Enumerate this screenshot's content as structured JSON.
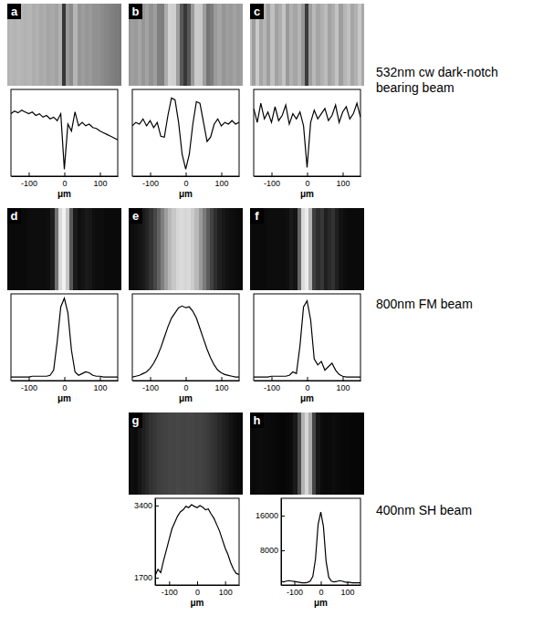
{
  "chart_data": [
    {
      "type": "line",
      "label": "a",
      "color": "#000000",
      "xlabel": "μm",
      "tick_labels": "x",
      "xlim": [
        -150,
        150
      ],
      "xticks": [
        -100,
        0,
        100
      ],
      "ylim": [
        0,
        1
      ],
      "x": [
        -150,
        -140,
        -130,
        -120,
        -110,
        -100,
        -90,
        -80,
        -70,
        -60,
        -50,
        -40,
        -30,
        -20,
        -10,
        0,
        10,
        20,
        30,
        40,
        50,
        60,
        70,
        80,
        90,
        100,
        110,
        120,
        130,
        140,
        150
      ],
      "values": [
        0.72,
        0.75,
        0.73,
        0.76,
        0.74,
        0.72,
        0.74,
        0.7,
        0.72,
        0.68,
        0.7,
        0.66,
        0.68,
        0.64,
        0.72,
        0.08,
        0.6,
        0.52,
        0.74,
        0.58,
        0.62,
        0.58,
        0.6,
        0.56,
        0.55,
        0.52,
        0.5,
        0.48,
        0.46,
        0.44,
        0.42
      ]
    },
    {
      "type": "line",
      "label": "b",
      "color": "#000000",
      "xlabel": "μm",
      "tick_labels": "x",
      "xlim": [
        -150,
        150
      ],
      "xticks": [
        -100,
        0,
        100
      ],
      "ylim": [
        0,
        1
      ],
      "x": [
        -150,
        -140,
        -130,
        -120,
        -110,
        -100,
        -90,
        -80,
        -70,
        -60,
        -50,
        -40,
        -30,
        -20,
        -10,
        0,
        10,
        20,
        30,
        40,
        50,
        60,
        70,
        80,
        90,
        100,
        110,
        120,
        130,
        140,
        150
      ],
      "values": [
        0.58,
        0.62,
        0.6,
        0.66,
        0.58,
        0.64,
        0.56,
        0.62,
        0.46,
        0.45,
        0.7,
        0.9,
        0.88,
        0.62,
        0.25,
        0.08,
        0.25,
        0.6,
        0.86,
        0.84,
        0.62,
        0.4,
        0.45,
        0.6,
        0.66,
        0.58,
        0.62,
        0.6,
        0.64,
        0.6,
        0.62
      ]
    },
    {
      "type": "line",
      "label": "c",
      "color": "#000000",
      "xlabel": "μm",
      "tick_labels": "x",
      "xlim": [
        -150,
        150
      ],
      "xticks": [
        -100,
        0,
        100
      ],
      "ylim": [
        0,
        1
      ],
      "x": [
        -150,
        -140,
        -130,
        -120,
        -110,
        -100,
        -90,
        -80,
        -70,
        -60,
        -50,
        -40,
        -30,
        -20,
        -10,
        0,
        10,
        20,
        30,
        40,
        50,
        60,
        70,
        80,
        90,
        100,
        110,
        120,
        130,
        140,
        150
      ],
      "values": [
        0.78,
        0.62,
        0.84,
        0.66,
        0.74,
        0.62,
        0.8,
        0.64,
        0.7,
        0.82,
        0.6,
        0.72,
        0.66,
        0.74,
        0.58,
        0.1,
        0.62,
        0.76,
        0.66,
        0.72,
        0.78,
        0.64,
        0.7,
        0.82,
        0.62,
        0.74,
        0.8,
        0.66,
        0.72,
        0.84,
        0.68
      ]
    },
    {
      "type": "line",
      "label": "d",
      "color": "#000000",
      "xlabel": "μm",
      "tick_labels": "x",
      "xlim": [
        -150,
        150
      ],
      "xticks": [
        -100,
        0,
        100
      ],
      "ylim": [
        0,
        1
      ],
      "x": [
        -150,
        -140,
        -130,
        -120,
        -110,
        -100,
        -90,
        -80,
        -70,
        -60,
        -50,
        -40,
        -30,
        -20,
        -10,
        0,
        10,
        20,
        30,
        40,
        50,
        60,
        70,
        80,
        90,
        100,
        110,
        120,
        130,
        140,
        150
      ],
      "values": [
        0.04,
        0.04,
        0.04,
        0.04,
        0.04,
        0.04,
        0.05,
        0.05,
        0.05,
        0.05,
        0.05,
        0.06,
        0.12,
        0.45,
        0.85,
        0.95,
        0.78,
        0.35,
        0.1,
        0.06,
        0.08,
        0.1,
        0.09,
        0.06,
        0.05,
        0.05,
        0.04,
        0.04,
        0.04,
        0.04,
        0.04
      ]
    },
    {
      "type": "line",
      "label": "e",
      "color": "#000000",
      "xlabel": "μm",
      "tick_labels": "x",
      "xlim": [
        -150,
        150
      ],
      "xticks": [
        -100,
        0,
        100
      ],
      "ylim": [
        0,
        1
      ],
      "x": [
        -150,
        -140,
        -130,
        -120,
        -110,
        -100,
        -90,
        -80,
        -70,
        -60,
        -50,
        -40,
        -30,
        -20,
        -10,
        0,
        10,
        20,
        30,
        40,
        50,
        60,
        70,
        80,
        90,
        100,
        110,
        120,
        130,
        140,
        150
      ],
      "values": [
        0.04,
        0.05,
        0.06,
        0.08,
        0.1,
        0.14,
        0.2,
        0.28,
        0.38,
        0.5,
        0.62,
        0.72,
        0.78,
        0.84,
        0.86,
        0.84,
        0.85,
        0.8,
        0.72,
        0.6,
        0.48,
        0.36,
        0.26,
        0.18,
        0.12,
        0.09,
        0.07,
        0.06,
        0.05,
        0.04,
        0.04
      ]
    },
    {
      "type": "line",
      "label": "f",
      "color": "#000000",
      "xlabel": "μm",
      "tick_labels": "x",
      "xlim": [
        -150,
        150
      ],
      "xticks": [
        -100,
        0,
        100
      ],
      "ylim": [
        0,
        1
      ],
      "x": [
        -150,
        -140,
        -130,
        -120,
        -110,
        -100,
        -90,
        -80,
        -70,
        -60,
        -50,
        -40,
        -30,
        -20,
        -10,
        0,
        10,
        20,
        30,
        40,
        50,
        60,
        70,
        80,
        90,
        100,
        110,
        120,
        130,
        140,
        150
      ],
      "values": [
        0.04,
        0.04,
        0.04,
        0.04,
        0.04,
        0.05,
        0.05,
        0.05,
        0.05,
        0.05,
        0.06,
        0.1,
        0.08,
        0.4,
        0.85,
        0.92,
        0.7,
        0.25,
        0.18,
        0.22,
        0.12,
        0.16,
        0.2,
        0.12,
        0.07,
        0.05,
        0.04,
        0.04,
        0.04,
        0.04,
        0.04
      ]
    },
    {
      "type": "line",
      "label": "g",
      "color": "#000000",
      "xlabel": "μm",
      "xlim": [
        -150,
        150
      ],
      "xticks": [
        -100,
        0,
        100
      ],
      "ylim": [
        1530,
        3570
      ],
      "yticks": [
        1700,
        3400
      ],
      "x": [
        -150,
        -140,
        -130,
        -120,
        -110,
        -100,
        -90,
        -80,
        -70,
        -60,
        -50,
        -40,
        -30,
        -20,
        -10,
        0,
        10,
        20,
        30,
        40,
        50,
        60,
        70,
        80,
        90,
        100,
        110,
        120,
        130,
        140,
        150
      ],
      "values": [
        1750,
        1900,
        1820,
        2100,
        2350,
        2600,
        2850,
        3000,
        3150,
        3250,
        3300,
        3380,
        3350,
        3420,
        3380,
        3350,
        3400,
        3360,
        3300,
        3320,
        3200,
        3100,
        2950,
        2800,
        2600,
        2400,
        2250,
        2050,
        1900,
        1800,
        1780
      ]
    },
    {
      "type": "line",
      "label": "h",
      "color": "#000000",
      "xlabel": "μm",
      "xlim": [
        -150,
        150
      ],
      "xticks": [
        -100,
        0,
        100
      ],
      "ylim": [
        0,
        20000
      ],
      "yticks": [
        8000,
        16000
      ],
      "x": [
        -150,
        -140,
        -130,
        -120,
        -110,
        -100,
        -90,
        -80,
        -70,
        -60,
        -50,
        -40,
        -30,
        -20,
        -10,
        0,
        10,
        20,
        30,
        40,
        50,
        60,
        70,
        80,
        90,
        100,
        110,
        120,
        130,
        140,
        150
      ],
      "values": [
        800,
        700,
        900,
        1000,
        900,
        800,
        700,
        600,
        500,
        500,
        600,
        900,
        2000,
        6000,
        14000,
        16800,
        13500,
        5500,
        1800,
        900,
        700,
        800,
        1000,
        900,
        700,
        600,
        600,
        500,
        500,
        500,
        500
      ]
    }
  ],
  "row_labels": [
    "532nm cw dark-notch bearing beam",
    "800nm FM beam",
    "400nm SH beam"
  ]
}
